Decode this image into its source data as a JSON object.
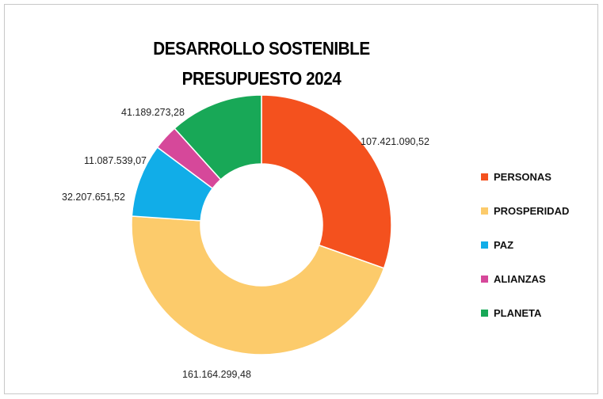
{
  "chart_data": {
    "type": "pie",
    "title_lines": [
      "DESARROLLO SOSTENIBLE",
      "PRESUPUESTO 2024"
    ],
    "categories": [
      "PERSONAS",
      "PROSPERIDAD",
      "PAZ",
      "ALIANZAS",
      "PLANETA"
    ],
    "values": [
      107421090.52,
      161164299.48,
      32207651.52,
      11087539.07,
      41189273.28
    ],
    "value_labels": [
      "107.421.090,52",
      "161.164.299,48",
      "32.207.651,52",
      "11.087.539,07",
      "41.189.273,28"
    ],
    "colors": [
      "#F4511E",
      "#FCCB6B",
      "#11ADE8",
      "#D6489A",
      "#18A857"
    ],
    "donut": true,
    "legend_position": "right"
  }
}
